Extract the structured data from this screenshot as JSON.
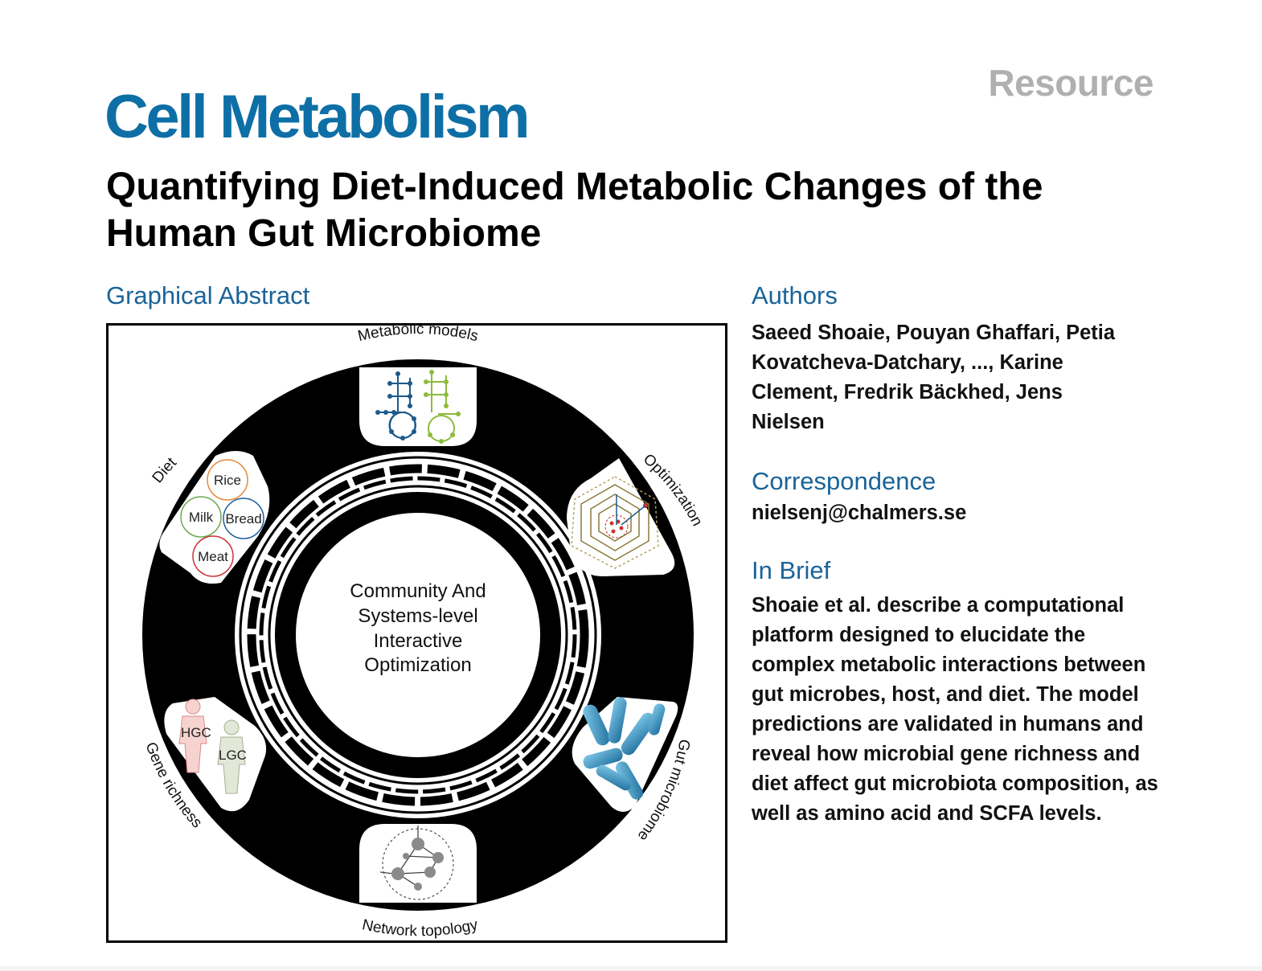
{
  "header": {
    "journal": "Cell Metabolism",
    "article_type": "Resource",
    "title": "Quantifying Diet-Induced Metabolic Changes of the Human Gut Microbiome"
  },
  "graphical_abstract": {
    "heading": "Graphical Abstract",
    "center_text": [
      "Community And",
      "Systems-level",
      "Interactive",
      "Optimization"
    ],
    "segments": {
      "top": "Metabolic models",
      "upper_right": "Optimization",
      "lower_right": "Gut microbiome",
      "bottom": "Network topology",
      "lower_left": "Gene richness",
      "upper_left": "Diet"
    },
    "diet_items": [
      "Rice",
      "Milk",
      "Bread",
      "Meat"
    ],
    "gene_richness_labels": [
      "HGC",
      "LGC"
    ],
    "colors": {
      "rice": "#e8893a",
      "milk": "#6aa84f",
      "bread": "#1f5f9e",
      "meat": "#cc3333",
      "network_blue": "#1d5a8a",
      "network_green": "#8dbb3c",
      "bacteria": "#2b8ab8"
    }
  },
  "authors": {
    "heading": "Authors",
    "text": "Saeed Shoaie, Pouyan Ghaffari, Petia Kovatcheva-Datchary, ..., Karine Clement, Fredrik Bäckhed, Jens Nielsen"
  },
  "correspondence": {
    "heading": "Correspondence",
    "email": "nielsenj@chalmers.se"
  },
  "in_brief": {
    "heading": "In Brief",
    "text": "Shoaie et al. describe a computational platform designed to elucidate the complex metabolic interactions between gut microbes, host, and diet. The model predictions are validated in humans and reveal how microbial gene richness and diet affect gut microbiota composition, as well as amino acid and SCFA levels."
  }
}
